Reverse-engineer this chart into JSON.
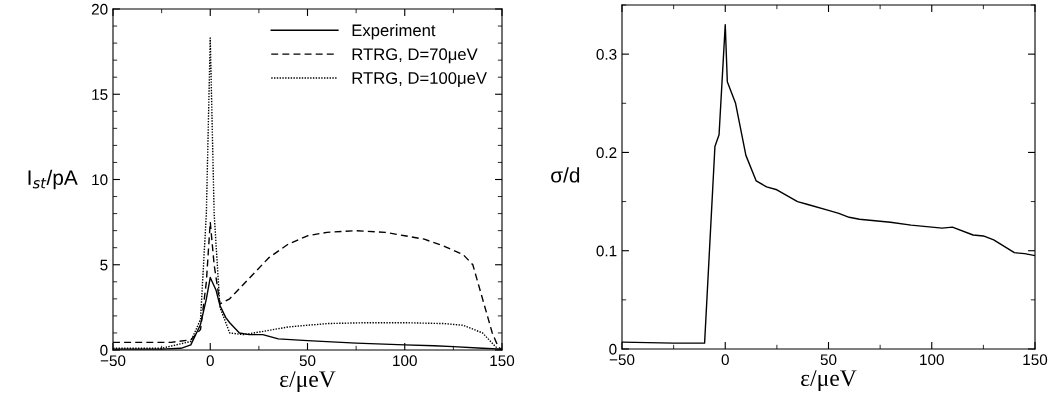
{
  "chart_data": [
    {
      "type": "line",
      "xlabel": "ε/μeV",
      "ylabel": "I$_{st}$/pA",
      "xlim": [
        -50,
        150
      ],
      "ylim": [
        0,
        20
      ],
      "xticks": [
        -50,
        0,
        50,
        100,
        150
      ],
      "yticks": [
        0,
        5,
        10,
        15,
        20
      ],
      "legend": "top right",
      "grid": false,
      "series": [
        {
          "name": "Experiment",
          "color": "#000000",
          "line_style": "solid",
          "x": [
            -50,
            -25,
            -15,
            -10,
            -5,
            -2,
            0,
            3,
            5,
            8,
            10,
            15,
            20,
            27,
            35,
            50,
            75,
            100,
            115,
            125,
            140,
            150
          ],
          "values": [
            0.05,
            0.05,
            0.1,
            0.3,
            1.5,
            3,
            4.25,
            3.5,
            2.6,
            1.9,
            1.6,
            1.0,
            0.9,
            0.9,
            0.65,
            0.55,
            0.4,
            0.3,
            0.25,
            0.2,
            0.1,
            0.05
          ]
        },
        {
          "name": "RTRG, D=70μeV",
          "color": "#000000",
          "line_style": "dashed",
          "x": [
            -50,
            -20,
            -10,
            -5,
            -2,
            0,
            2,
            5,
            10,
            20,
            30,
            40,
            50,
            60,
            75,
            90,
            100,
            110,
            120,
            130,
            135,
            140,
            145,
            148,
            150
          ],
          "values": [
            0.45,
            0.45,
            0.6,
            1.2,
            4,
            7.5,
            5,
            2.7,
            3.0,
            4.2,
            5.4,
            6.2,
            6.7,
            6.9,
            7.0,
            6.9,
            6.7,
            6.5,
            6.1,
            5.6,
            5.0,
            3.0,
            1.0,
            0.2,
            0
          ]
        },
        {
          "name": "RTRG, D=100μeV",
          "color": "#000000",
          "line_style": "dotted",
          "x": [
            -50,
            -25,
            -10,
            -5,
            -2,
            0,
            2,
            5,
            10,
            17,
            25,
            40,
            60,
            80,
            100,
            120,
            130,
            140,
            145,
            148
          ],
          "values": [
            0.1,
            0.1,
            0.5,
            1.8,
            8,
            18.3,
            8,
            2.5,
            1.0,
            0.9,
            1.05,
            1.35,
            1.55,
            1.6,
            1.6,
            1.55,
            1.45,
            1.0,
            0.4,
            0.05
          ]
        }
      ]
    },
    {
      "type": "line",
      "xlabel": "ε/μeV",
      "ylabel": "σ/d",
      "xlim": [
        -50,
        150
      ],
      "ylim": [
        0,
        0.35
      ],
      "xticks": [
        -50,
        0,
        50,
        100,
        150
      ],
      "yticks": [
        0,
        0.1,
        0.2,
        0.3
      ],
      "grid": false,
      "series": [
        {
          "color": "#000000",
          "line_style": "solid",
          "x": [
            -50,
            -25,
            -20,
            -10,
            -5,
            -3,
            0,
            1,
            5,
            10,
            15,
            20,
            25,
            35,
            40,
            50,
            55,
            60,
            65,
            80,
            90,
            100,
            105,
            110,
            120,
            125,
            130,
            140,
            145,
            150
          ],
          "values": [
            0.007,
            0.006,
            0.006,
            0.006,
            0.206,
            0.218,
            0.33,
            0.272,
            0.25,
            0.197,
            0.171,
            0.165,
            0.162,
            0.15,
            0.147,
            0.141,
            0.138,
            0.134,
            0.132,
            0.129,
            0.126,
            0.124,
            0.123,
            0.124,
            0.116,
            0.115,
            0.111,
            0.098,
            0.097,
            0.095
          ]
        }
      ]
    }
  ]
}
